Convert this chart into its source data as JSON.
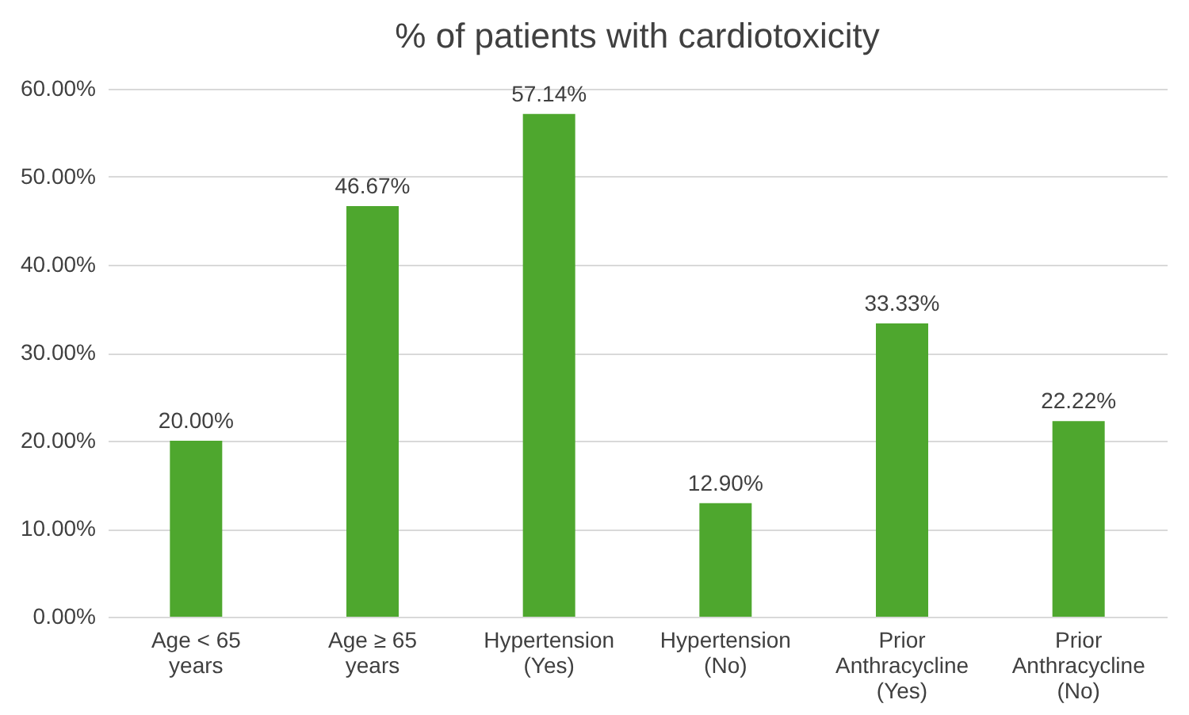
{
  "chart_data": {
    "type": "bar",
    "title": "% of patients with cardiotoxicity",
    "categories": [
      "Age < 65 years",
      "Age ≥ 65 years",
      "Hypertension (Yes)",
      "Hypertension (No)",
      "Prior Anthracycline (Yes)",
      "Prior Anthracycline (No)"
    ],
    "values": [
      20,
      46.67,
      57.14,
      12.9,
      33.33,
      22.22
    ],
    "value_labels": [
      "20.00%",
      "46.67%",
      "57.14%",
      "12.90%",
      "33.33%",
      "22.22%"
    ],
    "color": "#4ea72e",
    "ylim": [
      0,
      60
    ],
    "yticks": [
      {
        "value": 0,
        "label": "0.00%"
      },
      {
        "value": 10,
        "label": "10.00%"
      },
      {
        "value": 20,
        "label": "20.00%"
      },
      {
        "value": 30,
        "label": "30.00%"
      },
      {
        "value": 40,
        "label": "40.00%"
      },
      {
        "value": 50,
        "label": "50.00%"
      },
      {
        "value": 60,
        "label": "60.00%"
      }
    ],
    "grid": "y"
  }
}
